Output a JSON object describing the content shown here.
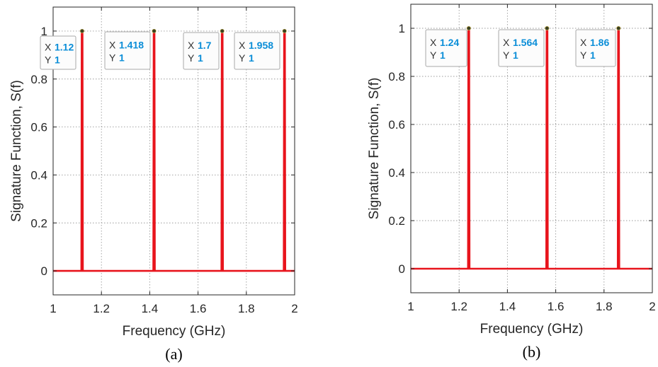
{
  "chart_data": [
    {
      "type": "line",
      "panel_label": "(a)",
      "xlabel": "Frequency (GHz)",
      "ylabel": "Signature Function, S(f)",
      "xlim": [
        1,
        2
      ],
      "ylim": [
        -0.1,
        1.1
      ],
      "xticks": [
        "1",
        "1.2",
        "1.4",
        "1.6",
        "1.8",
        "2"
      ],
      "yticks": [
        "0",
        "0.2",
        "0.4",
        "0.6",
        "0.8",
        "1"
      ],
      "grid": true,
      "series_color": "#e8141c",
      "peaks": [
        {
          "x": 1.12,
          "y": 1,
          "x_label": "1.12",
          "y_label": "1"
        },
        {
          "x": 1.418,
          "y": 1,
          "x_label": "1.418",
          "y_label": "1"
        },
        {
          "x": 1.7,
          "y": 1,
          "x_label": "1.7",
          "y_label": "1"
        },
        {
          "x": 1.958,
          "y": 1,
          "x_label": "1.958",
          "y_label": "1"
        }
      ]
    },
    {
      "type": "line",
      "panel_label": "(b)",
      "xlabel": "Frequency (GHz)",
      "ylabel": "Signature Function, S(f)",
      "xlim": [
        1,
        2
      ],
      "ylim": [
        -0.1,
        1.1
      ],
      "xticks": [
        "1",
        "1.2",
        "1.4",
        "1.6",
        "1.8",
        "2"
      ],
      "yticks": [
        "0",
        "0.2",
        "0.4",
        "0.6",
        "0.8",
        "1"
      ],
      "grid": true,
      "series_color": "#e8141c",
      "peaks": [
        {
          "x": 1.24,
          "y": 1,
          "x_label": "1.24",
          "y_label": "1"
        },
        {
          "x": 1.564,
          "y": 1,
          "x_label": "1.564",
          "y_label": "1"
        },
        {
          "x": 1.86,
          "y": 1,
          "x_label": "1.86",
          "y_label": "1"
        }
      ]
    }
  ],
  "datatip": {
    "x_key": "X",
    "y_key": "Y"
  }
}
